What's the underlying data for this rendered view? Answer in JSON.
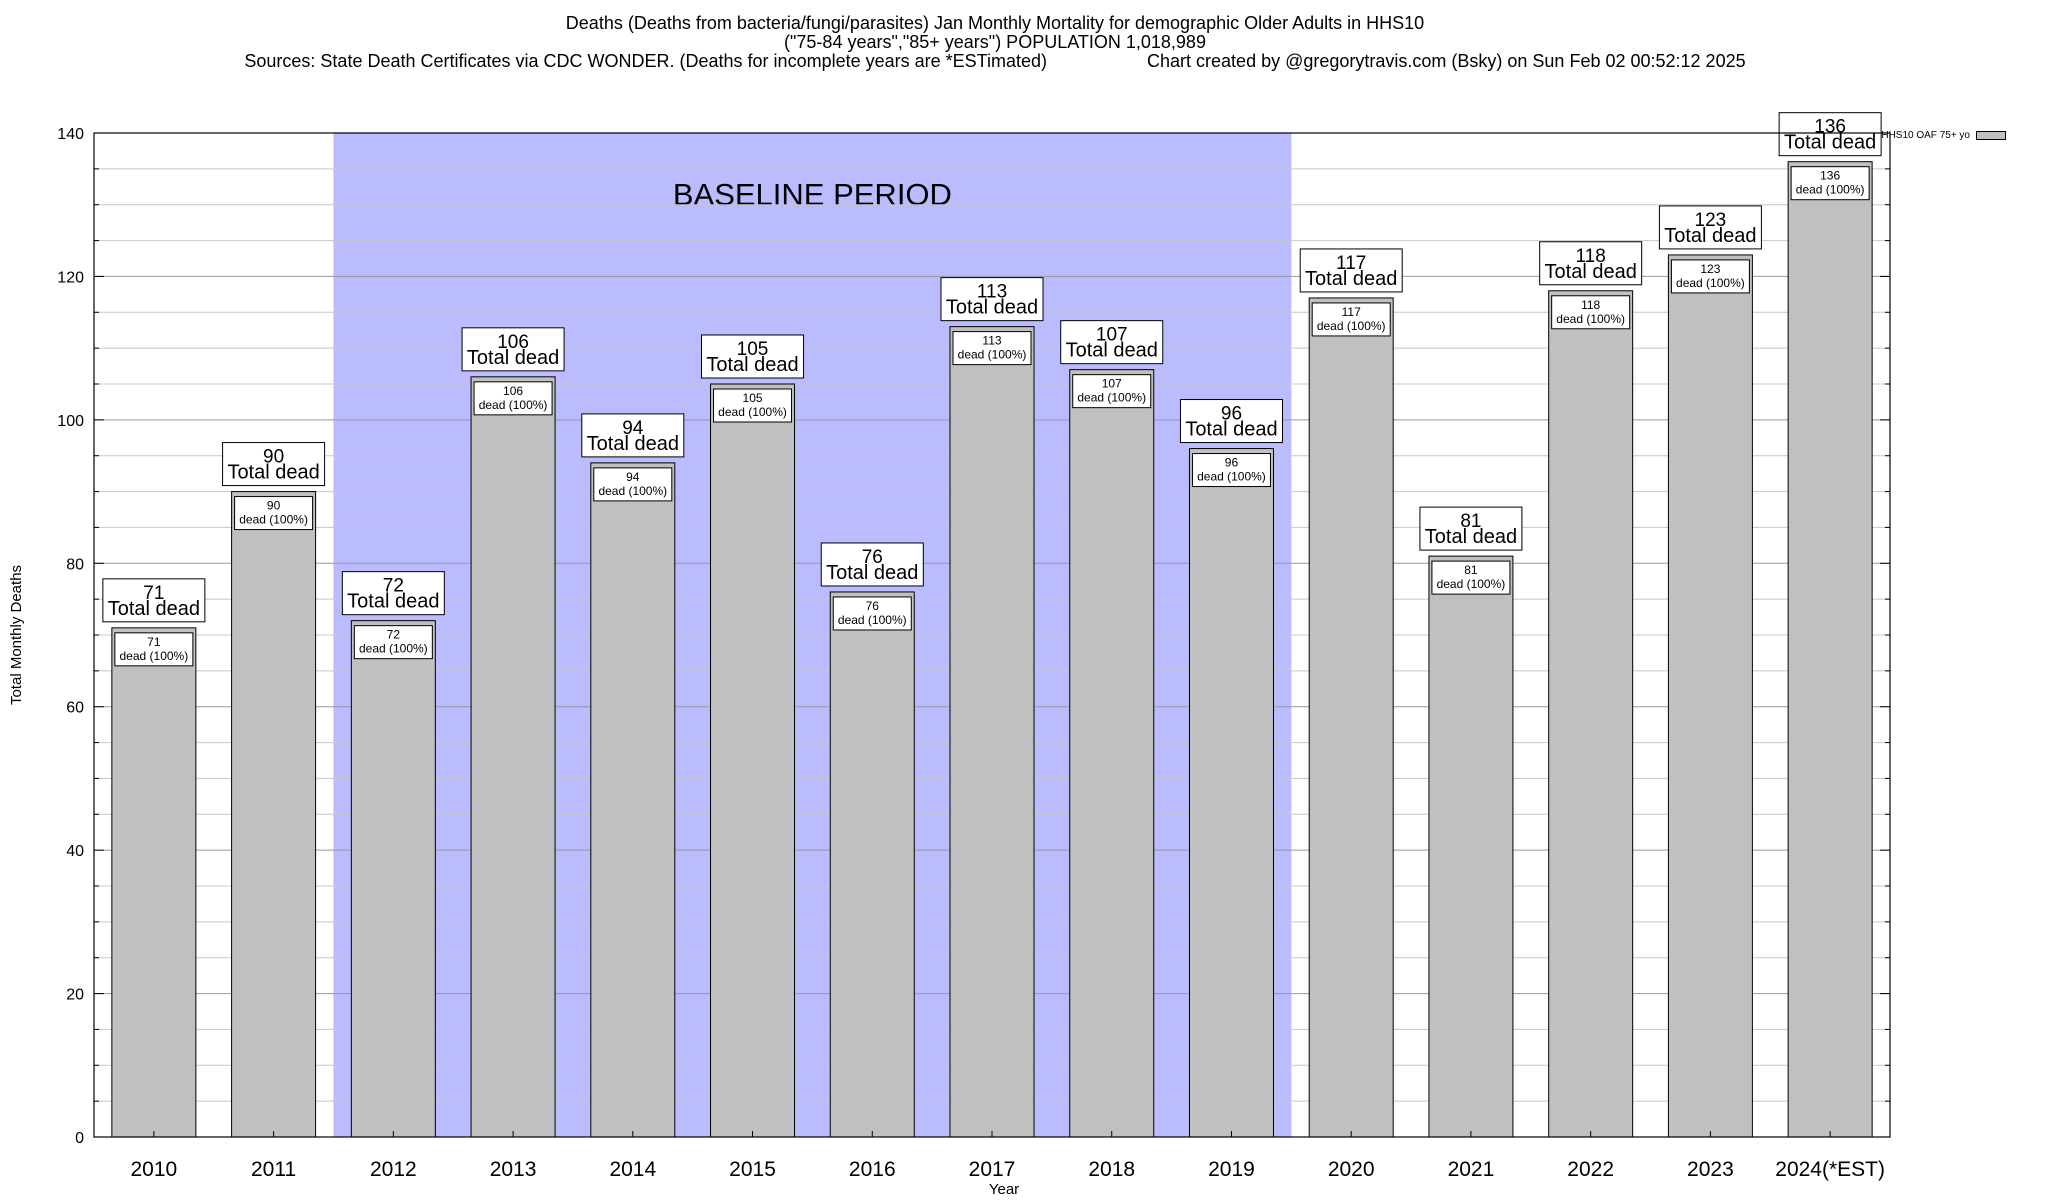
{
  "header": {
    "line1": "Deaths (Deaths from bacteria/fungi/parasites) Jan Monthly Mortality for demographic Older Adults in HHS10",
    "line2": "(\"75-84 years\",\"85+ years\") POPULATION 1,018,989",
    "line3": "Sources: State Death Certificates via CDC WONDER. (Deaths for incomplete years are *ESTimated)                    Chart created by @gregorytravis.com (Bsky) on Sun Feb 02 00:52:12 2025"
  },
  "legend": {
    "label": "HHS10 OAF 75+ yo"
  },
  "chart_data": {
    "type": "bar",
    "categories": [
      "2010",
      "2011",
      "2012",
      "2013",
      "2014",
      "2015",
      "2016",
      "2017",
      "2018",
      "2019",
      "2020",
      "2021",
      "2022",
      "2023",
      "2024(*EST)"
    ],
    "series": [
      {
        "name": "HHS10 OAF 75+ yo",
        "values": [
          71,
          90,
          72,
          106,
          94,
          105,
          76,
          113,
          107,
          96,
          117,
          81,
          118,
          123,
          136
        ]
      }
    ],
    "total_label": "Total dead",
    "inner_label": "dead (100%)",
    "xlabel": "Year",
    "ylabel": "Total Monthly Deaths",
    "ylim": [
      0,
      140
    ],
    "yticks": [
      0,
      20,
      40,
      60,
      80,
      100,
      120,
      140
    ],
    "baseline": {
      "label": "BASELINE PERIOD",
      "from": "2012",
      "to": "2019",
      "color": "#bbbbff"
    },
    "bar_color": "#c0c0c0",
    "grid": true,
    "legend_position": "top-right"
  }
}
